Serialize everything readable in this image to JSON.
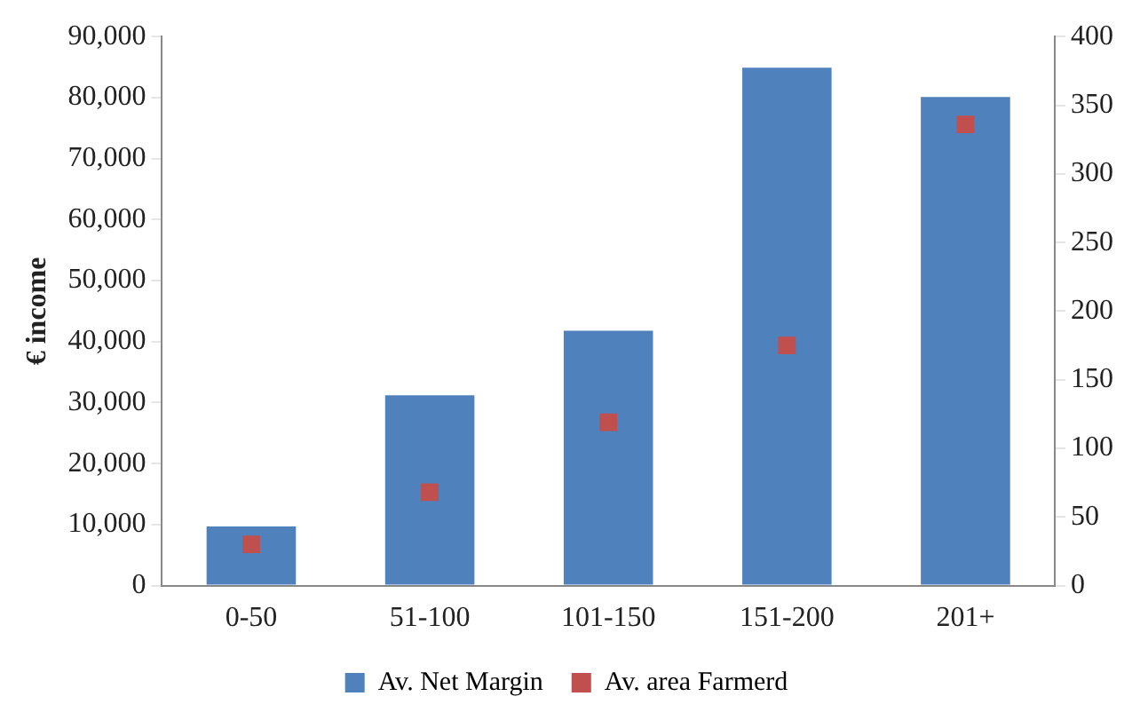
{
  "chart_data": {
    "type": "bar",
    "categories": [
      "0-50",
      "51-100",
      "101-150",
      "151-200",
      "201+"
    ],
    "ylabel": "€ income",
    "ylim": [
      0,
      90000
    ],
    "yticks": [
      {
        "value": 0,
        "label": "0"
      },
      {
        "value": 10000,
        "label": "10,000"
      },
      {
        "value": 20000,
        "label": "20,000"
      },
      {
        "value": 30000,
        "label": "30,000"
      },
      {
        "value": 40000,
        "label": "40,000"
      },
      {
        "value": 50000,
        "label": "50,000"
      },
      {
        "value": 60000,
        "label": "60,000"
      },
      {
        "value": 70000,
        "label": "70,000"
      },
      {
        "value": 80000,
        "label": "80,000"
      },
      {
        "value": 90000,
        "label": "90,000"
      }
    ],
    "y2lim": [
      0,
      400
    ],
    "y2ticks": [
      0,
      50,
      100,
      150,
      200,
      250,
      300,
      350,
      400
    ],
    "legend": "bottom",
    "grid": false,
    "series": [
      {
        "name": "Av. Net Margin",
        "color": "#4f81bd",
        "values": [
          9700,
          31200,
          41800,
          84900,
          80100
        ]
      },
      {
        "name": "Av. area Farmerd",
        "type": "scatter",
        "axis": "y2",
        "marker": "square",
        "color": "#c0504d",
        "values": [
          30,
          68,
          119,
          175,
          336
        ]
      }
    ]
  }
}
